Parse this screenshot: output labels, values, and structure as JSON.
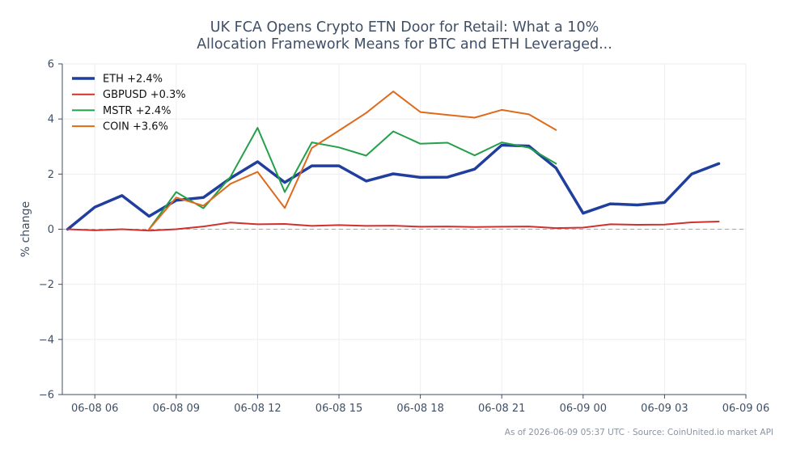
{
  "chart_data": {
    "type": "line",
    "title_lines": [
      "UK FCA Opens Crypto ETN Door for Retail: What a 10%",
      "Allocation Framework Means for BTC and ETH Leveraged..."
    ],
    "xlabel": "",
    "ylabel": "% change",
    "ylim": [
      -6,
      6
    ],
    "yticks": [
      6,
      4,
      2,
      0,
      -2,
      -4,
      -6
    ],
    "ytick_labels": [
      "6",
      "4",
      "2",
      "0",
      "−2",
      "−4",
      "−6"
    ],
    "xlim": [
      "06-08 04:48",
      "06-09 06:00"
    ],
    "xticks": [
      "06-08 06:00",
      "06-08 09:00",
      "06-08 12:00",
      "06-08 15:00",
      "06-08 18:00",
      "06-08 21:00",
      "06-09 00:00",
      "06-09 03:00",
      "06-09 06:00"
    ],
    "xtick_labels": [
      "06-08 06",
      "06-08 09",
      "06-08 12",
      "06-08 15",
      "06-08 18",
      "06-08 21",
      "06-09 00",
      "06-09 03",
      "06-09 06"
    ],
    "baseline": 0,
    "legend_position": "top-left",
    "series": [
      {
        "name": "ETH +2.4%",
        "color": "#1f3e9e",
        "width": 3.5,
        "x": [
          "06-08 05:00",
          "06-08 06:00",
          "06-08 07:00",
          "06-08 08:00",
          "06-08 09:00",
          "06-08 10:00",
          "06-08 11:00",
          "06-08 12:00",
          "06-08 13:00",
          "06-08 14:00",
          "06-08 15:00",
          "06-08 16:00",
          "06-08 17:00",
          "06-08 18:00",
          "06-08 19:00",
          "06-08 20:00",
          "06-08 21:00",
          "06-08 22:00",
          "06-08 23:00",
          "06-09 00:00",
          "06-09 01:00",
          "06-09 02:00",
          "06-09 03:00",
          "06-09 04:00",
          "06-09 05:00"
        ],
        "y": [
          0.0,
          0.8,
          1.22,
          0.47,
          1.05,
          1.15,
          1.85,
          2.45,
          1.7,
          2.3,
          2.3,
          1.75,
          2.01,
          1.88,
          1.89,
          2.18,
          3.05,
          3.02,
          2.22,
          0.58,
          0.92,
          0.88,
          0.97,
          2.0,
          2.38
        ]
      },
      {
        "name": "GBPUSD +0.3%",
        "color": "#d03030",
        "width": 2,
        "x": [
          "06-08 05:00",
          "06-08 06:00",
          "06-08 07:00",
          "06-08 08:00",
          "06-08 09:00",
          "06-08 10:00",
          "06-08 11:00",
          "06-08 12:00",
          "06-08 13:00",
          "06-08 14:00",
          "06-08 15:00",
          "06-08 16:00",
          "06-08 17:00",
          "06-08 18:00",
          "06-08 19:00",
          "06-08 20:00",
          "06-08 21:00",
          "06-08 22:00",
          "06-08 23:00",
          "06-09 00:00",
          "06-09 01:00",
          "06-09 02:00",
          "06-09 03:00",
          "06-09 04:00",
          "06-09 05:00"
        ],
        "y": [
          0.0,
          -0.04,
          0.0,
          -0.05,
          0.0,
          0.1,
          0.24,
          0.18,
          0.19,
          0.12,
          0.15,
          0.12,
          0.13,
          0.09,
          0.1,
          0.08,
          0.09,
          0.1,
          0.04,
          0.06,
          0.18,
          0.16,
          0.17,
          0.25,
          0.28
        ]
      },
      {
        "name": "MSTR +2.4%",
        "color": "#23a04a",
        "width": 2,
        "x": [
          "06-08 08:00",
          "06-08 09:00",
          "06-08 10:00",
          "06-08 11:00",
          "06-08 12:00",
          "06-08 13:00",
          "06-08 14:00",
          "06-08 15:00",
          "06-08 16:00",
          "06-08 17:00",
          "06-08 18:00",
          "06-08 19:00",
          "06-08 20:00",
          "06-08 21:00",
          "06-08 22:00",
          "06-08 23:00"
        ],
        "y": [
          0.0,
          1.35,
          0.76,
          1.9,
          3.68,
          1.35,
          3.15,
          2.97,
          2.67,
          3.55,
          3.1,
          3.14,
          2.68,
          3.15,
          2.96,
          2.38
        ]
      },
      {
        "name": "COIN +3.6%",
        "color": "#e06a1c",
        "width": 2,
        "x": [
          "06-08 08:00",
          "06-08 09:00",
          "06-08 10:00",
          "06-08 11:00",
          "06-08 12:00",
          "06-08 13:00",
          "06-08 14:00",
          "06-08 15:00",
          "06-08 16:00",
          "06-08 17:00",
          "06-08 18:00",
          "06-08 19:00",
          "06-08 20:00",
          "06-08 21:00",
          "06-08 22:00",
          "06-08 23:00"
        ],
        "y": [
          0.0,
          1.15,
          0.85,
          1.65,
          2.08,
          0.77,
          2.95,
          3.58,
          4.22,
          5.0,
          4.25,
          4.15,
          4.05,
          4.33,
          4.17,
          3.6
        ]
      }
    ]
  },
  "footnote": "As of 2026-06-09 05:37 UTC · Source: CoinUnited.io market API"
}
